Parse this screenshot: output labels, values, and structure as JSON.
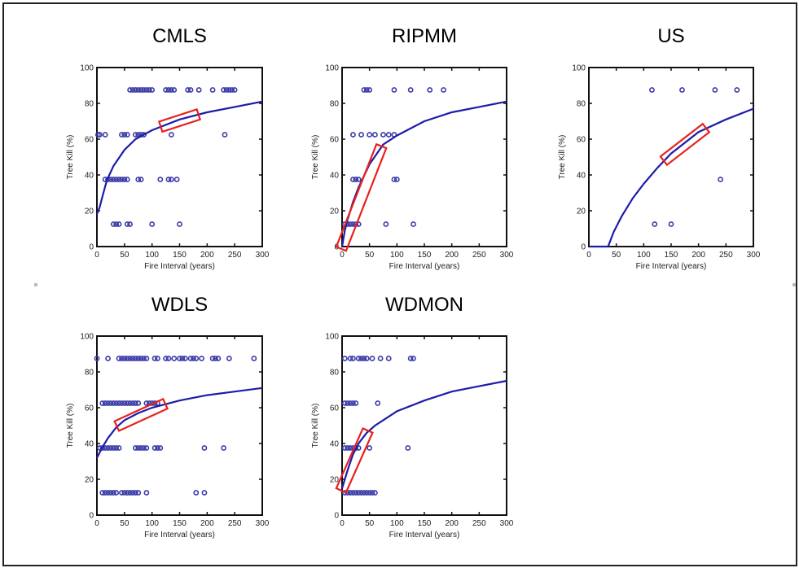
{
  "chart_data": [
    {
      "type": "scatter",
      "title": "CMLS",
      "xlabel": "Fire Interval (years)",
      "ylabel": "Tree Kill (%)",
      "xlim": [
        0,
        300
      ],
      "ylim": [
        0,
        100
      ],
      "xticks": [
        0,
        50,
        100,
        150,
        200,
        250,
        300
      ],
      "yticks": [
        0,
        20,
        40,
        60,
        80,
        100
      ],
      "points": [
        {
          "y": 87.5,
          "x": [
            60,
            65,
            70,
            75,
            80,
            85,
            90,
            95,
            100,
            125,
            130,
            135,
            140,
            165,
            170,
            185,
            210,
            230,
            235,
            240,
            245,
            250
          ]
        },
        {
          "y": 62.5,
          "x": [
            2,
            5,
            15,
            45,
            50,
            55,
            70,
            75,
            80,
            85,
            135,
            232
          ]
        },
        {
          "y": 37.5,
          "x": [
            15,
            20,
            25,
            30,
            35,
            40,
            45,
            50,
            55,
            75,
            80,
            115,
            130,
            135,
            145
          ]
        },
        {
          "y": 12.5,
          "x": [
            30,
            35,
            40,
            55,
            60,
            100,
            150
          ]
        }
      ],
      "fit_curve": {
        "x": [
          0,
          5,
          10,
          18,
          30,
          50,
          70,
          100,
          150,
          200,
          250,
          300
        ],
        "y": [
          18,
          22,
          28,
          37,
          45,
          54,
          60,
          65,
          71,
          75,
          78,
          81
        ]
      },
      "highlight_x_range": [
        120,
        180
      ]
    },
    {
      "type": "scatter",
      "title": "RIPMM",
      "xlabel": "Fire Interval (years)",
      "ylabel": "Tree Kill (%)",
      "xlim": [
        0,
        300
      ],
      "ylim": [
        0,
        100
      ],
      "xticks": [
        0,
        50,
        100,
        150,
        200,
        250,
        300
      ],
      "yticks": [
        0,
        20,
        40,
        60,
        80,
        100
      ],
      "points": [
        {
          "y": 87.5,
          "x": [
            40,
            45,
            50,
            95,
            125,
            160,
            185
          ]
        },
        {
          "y": 62.5,
          "x": [
            20,
            35,
            50,
            60,
            75,
            85,
            95
          ]
        },
        {
          "y": 37.5,
          "x": [
            20,
            25,
            30,
            95,
            100
          ]
        },
        {
          "y": 12.5,
          "x": [
            5,
            10,
            15,
            20,
            25,
            30,
            80,
            130
          ]
        }
      ],
      "fit_curve": {
        "x": [
          0,
          5,
          10,
          20,
          30,
          50,
          75,
          100,
          150,
          200,
          250,
          300
        ],
        "y": [
          0,
          9,
          15,
          25,
          33,
          46,
          57,
          62,
          70,
          75,
          78,
          81
        ]
      },
      "highlight_x_range": [
        0,
        70
      ]
    },
    {
      "type": "scatter",
      "title": "US",
      "xlabel": "Fire Interval (years)",
      "ylabel": "Tree Kill (%)",
      "xlim": [
        0,
        300
      ],
      "ylim": [
        0,
        100
      ],
      "xticks": [
        0,
        50,
        100,
        150,
        200,
        250,
        300
      ],
      "yticks": [
        0,
        20,
        40,
        60,
        80,
        100
      ],
      "points": [
        {
          "y": 87.5,
          "x": [
            115,
            170,
            230,
            270
          ]
        },
        {
          "y": 37.5,
          "x": [
            240
          ]
        },
        {
          "y": 12.5,
          "x": [
            120,
            150
          ]
        }
      ],
      "fit_curve": {
        "x": [
          0,
          35,
          45,
          60,
          80,
          100,
          125,
          150,
          200,
          250,
          300
        ],
        "y": [
          0,
          0,
          8,
          17,
          27,
          35,
          44,
          52,
          64,
          71,
          77
        ]
      },
      "highlight_x_range": [
        140,
        210
      ]
    },
    {
      "type": "scatter",
      "title": "WDLS",
      "xlabel": "Fire Interval (years)",
      "ylabel": "Tree Kill (%)",
      "xlim": [
        0,
        300
      ],
      "ylim": [
        0,
        100
      ],
      "xticks": [
        0,
        50,
        100,
        150,
        200,
        250,
        300
      ],
      "yticks": [
        0,
        20,
        40,
        60,
        80,
        100
      ],
      "points": [
        {
          "y": 87.5,
          "x": [
            0,
            20,
            40,
            45,
            50,
            55,
            60,
            65,
            70,
            75,
            80,
            85,
            90,
            105,
            110,
            125,
            130,
            140,
            150,
            155,
            160,
            170,
            175,
            180,
            190,
            210,
            215,
            220,
            240,
            285
          ]
        },
        {
          "y": 62.5,
          "x": [
            10,
            15,
            20,
            25,
            30,
            35,
            40,
            45,
            50,
            55,
            60,
            65,
            70,
            75,
            90,
            95,
            100,
            105,
            110
          ]
        },
        {
          "y": 37.5,
          "x": [
            5,
            10,
            15,
            20,
            25,
            30,
            35,
            40,
            70,
            75,
            80,
            85,
            90,
            105,
            110,
            115,
            195,
            230
          ]
        },
        {
          "y": 12.5,
          "x": [
            10,
            15,
            20,
            25,
            30,
            35,
            45,
            50,
            55,
            60,
            65,
            70,
            75,
            90,
            180,
            195
          ]
        }
      ],
      "fit_curve": {
        "x": [
          0,
          5,
          10,
          20,
          35,
          50,
          75,
          100,
          150,
          200,
          250,
          300
        ],
        "y": [
          32,
          35,
          38,
          43,
          49,
          53,
          57,
          60,
          64,
          67,
          69,
          71
        ]
      },
      "highlight_x_range": [
        40,
        120
      ]
    },
    {
      "type": "scatter",
      "title": "WDMON",
      "xlabel": "Fire Interval (years)",
      "ylabel": "Tree Kill (%)",
      "xlim": [
        0,
        300
      ],
      "ylim": [
        0,
        100
      ],
      "xticks": [
        0,
        50,
        100,
        150,
        200,
        250,
        300
      ],
      "yticks": [
        0,
        20,
        40,
        60,
        80,
        100
      ],
      "points": [
        {
          "y": 87.5,
          "x": [
            5,
            15,
            20,
            30,
            35,
            40,
            45,
            55,
            70,
            85,
            125,
            130
          ]
        },
        {
          "y": 62.5,
          "x": [
            5,
            10,
            15,
            20,
            25,
            65
          ]
        },
        {
          "y": 37.5,
          "x": [
            5,
            10,
            15,
            20,
            25,
            30,
            50,
            120
          ]
        },
        {
          "y": 12.5,
          "x": [
            5,
            10,
            15,
            20,
            25,
            30,
            35,
            40,
            45,
            50,
            55,
            60
          ]
        }
      ],
      "fit_curve": {
        "x": [
          0,
          5,
          10,
          20,
          30,
          45,
          60,
          80,
          100,
          150,
          200,
          250,
          300
        ],
        "y": [
          15,
          20,
          25,
          34,
          40,
          46,
          50,
          54,
          58,
          64,
          69,
          72,
          75
        ]
      },
      "highlight_x_range": [
        0,
        45
      ]
    }
  ],
  "colors": {
    "points": "#3a3aa8",
    "curve": "#1c1ca8",
    "highlight": "#e8201c",
    "axis": "#111111"
  }
}
